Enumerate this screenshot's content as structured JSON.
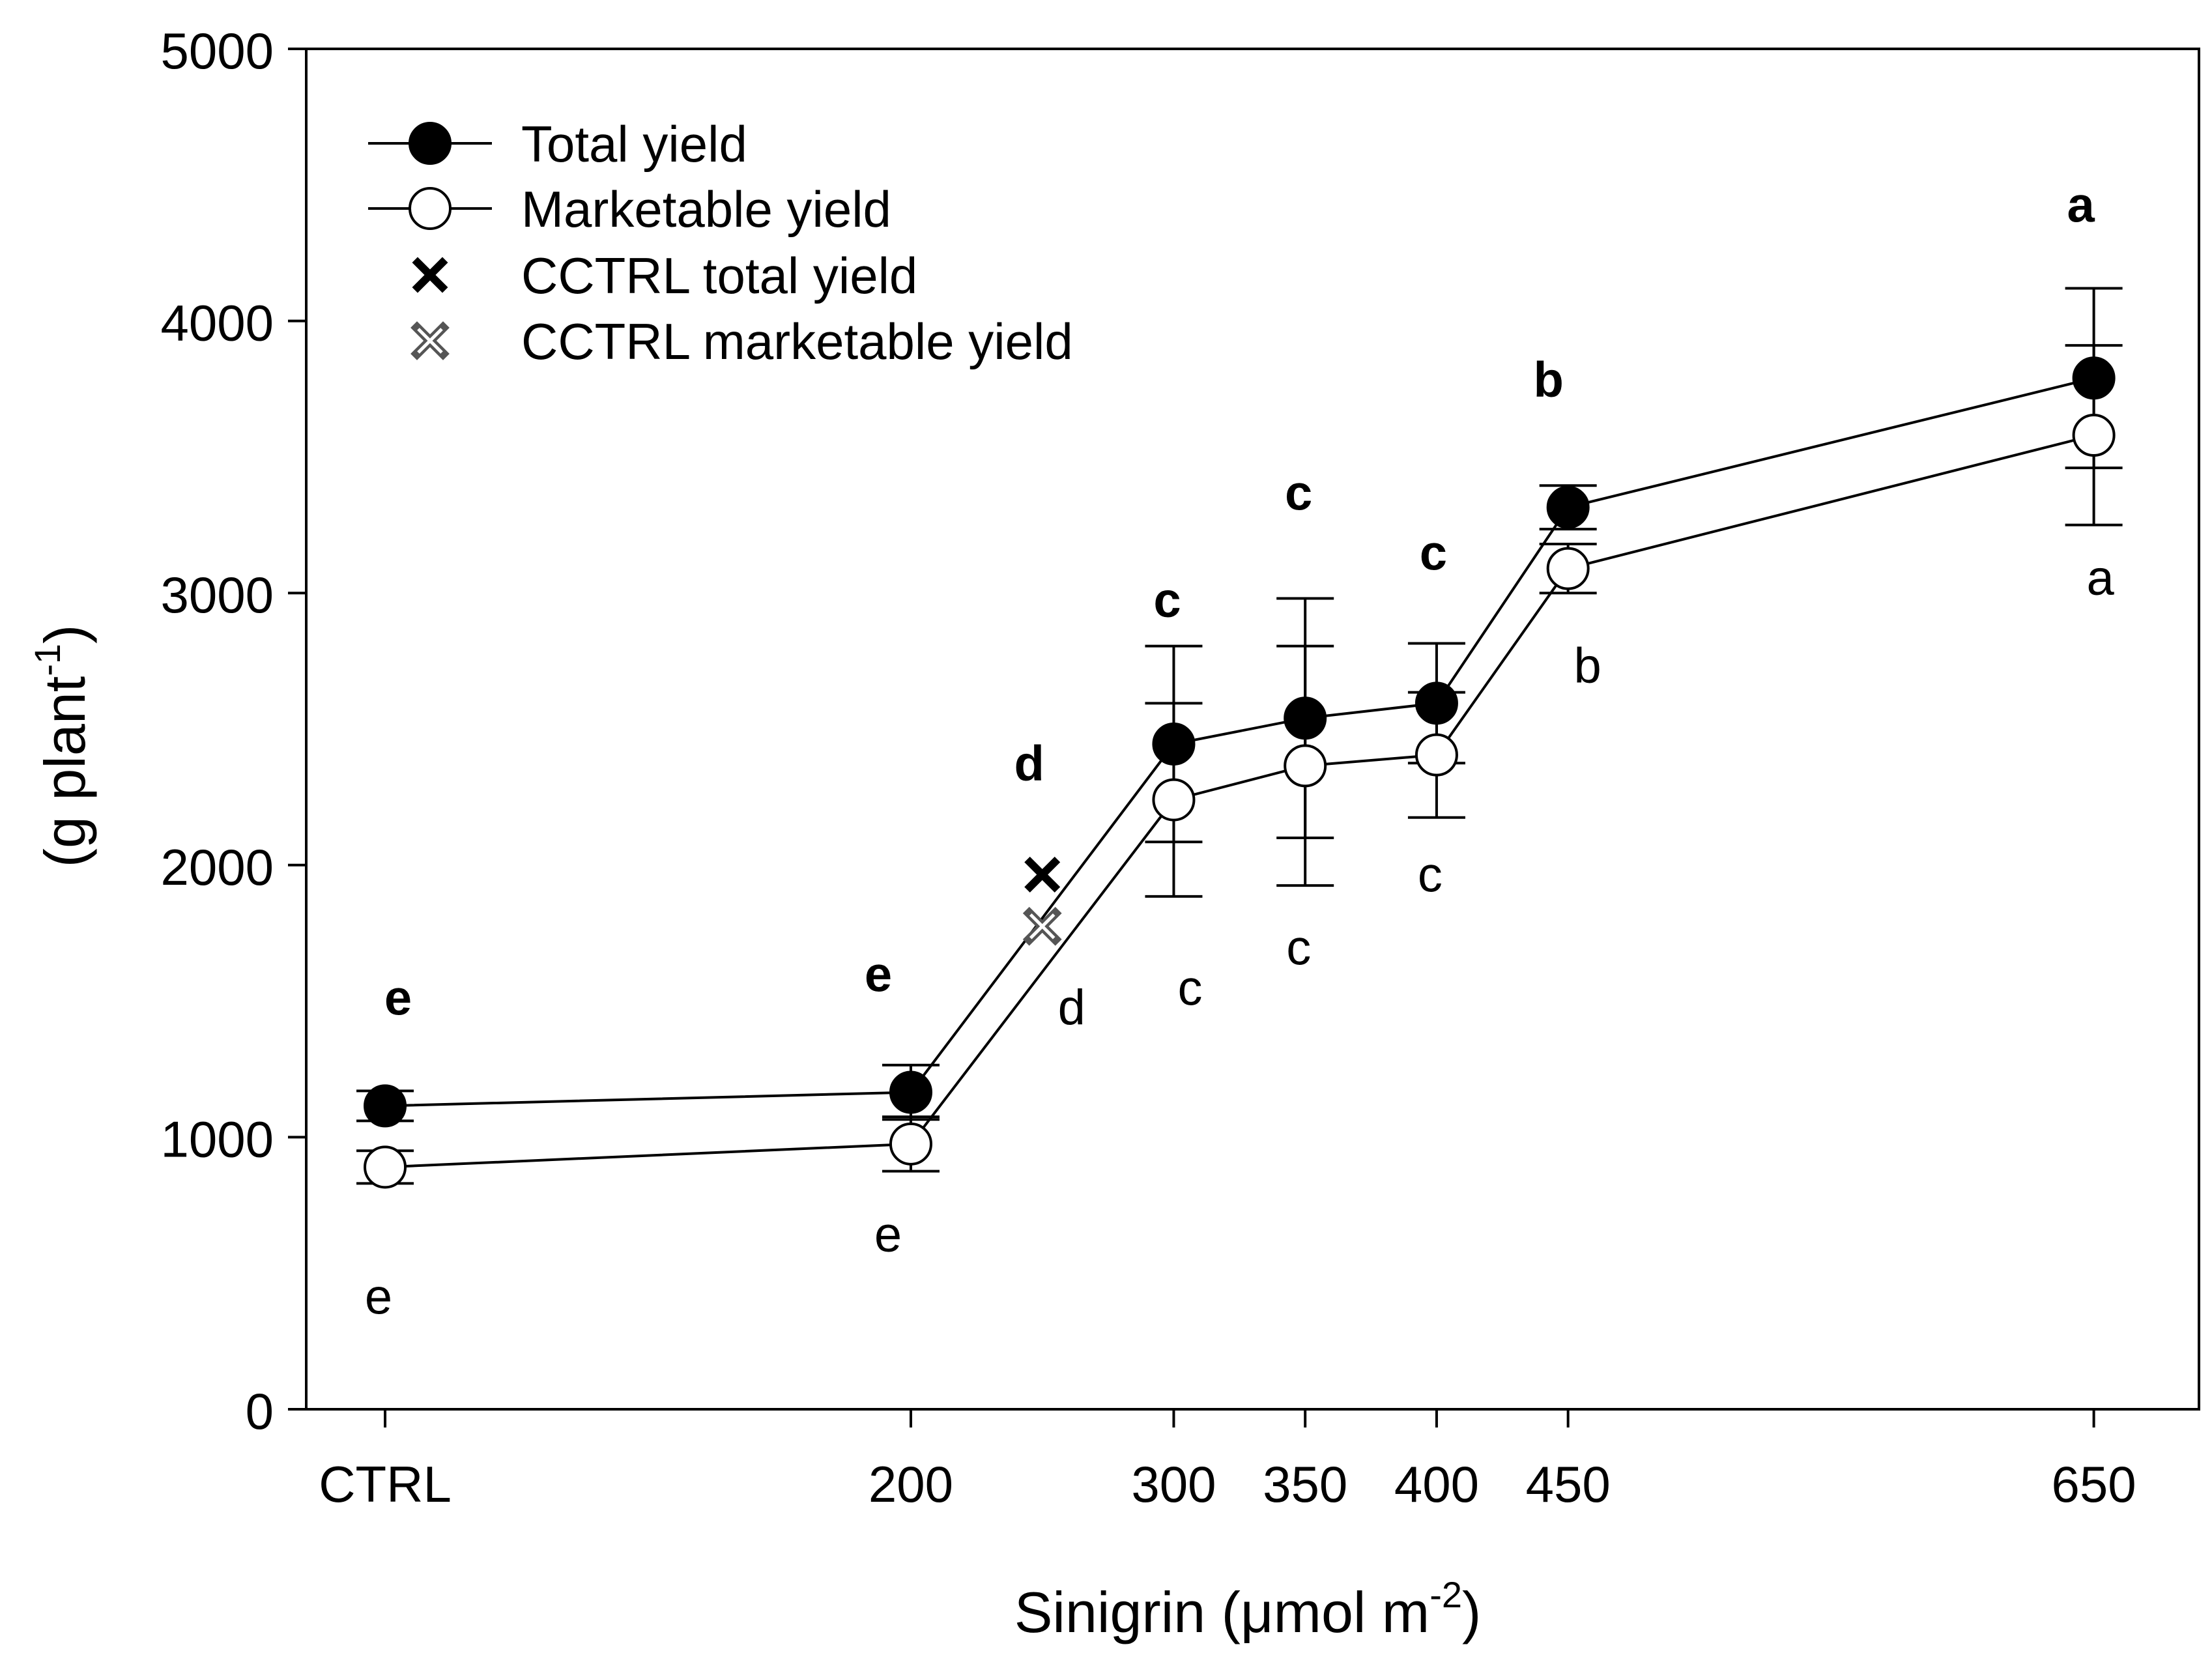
{
  "chart_data": {
    "type": "line",
    "title": "",
    "xlabel": {
      "main": "Sinigrin (μmol m",
      "sup": "-2",
      "end": ")"
    },
    "ylabel": {
      "main": "(g plant",
      "sup": "-1",
      "end": ")"
    },
    "x_ticks": [
      {
        "label": "CTRL",
        "x": 0
      },
      {
        "label": "200",
        "x": 200
      },
      {
        "label": "300",
        "x": 300
      },
      {
        "label": "350",
        "x": 350
      },
      {
        "label": "400",
        "x": 400
      },
      {
        "label": "450",
        "x": 450
      },
      {
        "label": "650",
        "x": 650
      }
    ],
    "xlim": [
      -30,
      690
    ],
    "ylim": [
      0,
      5000
    ],
    "y_ticks": [
      "0",
      "1000",
      "2000",
      "3000",
      "4000",
      "5000"
    ],
    "series": [
      {
        "name": "Total yield",
        "marker": "filled-circle",
        "points": [
          {
            "x": 0,
            "y": 1115,
            "err": 55,
            "letter": "e"
          },
          {
            "x": 200,
            "y": 1165,
            "err": 100,
            "letter": "e"
          },
          {
            "x": 300,
            "y": 2445,
            "err": 360,
            "letter": "c"
          },
          {
            "x": 350,
            "y": 2540,
            "err": 440,
            "letter": "c"
          },
          {
            "x": 400,
            "y": 2595,
            "err": 220,
            "letter": "c"
          },
          {
            "x": 450,
            "y": 3315,
            "err": 80,
            "letter": "b"
          },
          {
            "x": 650,
            "y": 3790,
            "err": 330,
            "letter": "a"
          }
        ]
      },
      {
        "name": "Marketable yield",
        "marker": "open-circle",
        "points": [
          {
            "x": 0,
            "y": 890,
            "err": 60,
            "letter": "e"
          },
          {
            "x": 200,
            "y": 975,
            "err": 100,
            "letter": "e"
          },
          {
            "x": 300,
            "y": 2240,
            "err": 355,
            "letter": "c"
          },
          {
            "x": 350,
            "y": 2365,
            "err": 440,
            "letter": "c"
          },
          {
            "x": 400,
            "y": 2405,
            "err": 230,
            "letter": "c"
          },
          {
            "x": 450,
            "y": 3090,
            "err": 90,
            "letter": "b"
          },
          {
            "x": 650,
            "y": 3580,
            "err": 330,
            "letter": "a"
          }
        ]
      },
      {
        "name": "CCTRL total yield",
        "marker": "x",
        "points": [
          {
            "x": 250,
            "y": 1965,
            "letter": "d"
          }
        ]
      },
      {
        "name": "CCTRL marketable yield",
        "marker": "crossed-x",
        "points": [
          {
            "x": 250,
            "y": 1775,
            "letter": "d"
          }
        ]
      }
    ],
    "legend": {
      "position": "top-left",
      "entries": [
        "Total yield",
        "Marketable yield",
        "CCTRL total yield",
        "CCTRL marketable yield"
      ]
    }
  }
}
